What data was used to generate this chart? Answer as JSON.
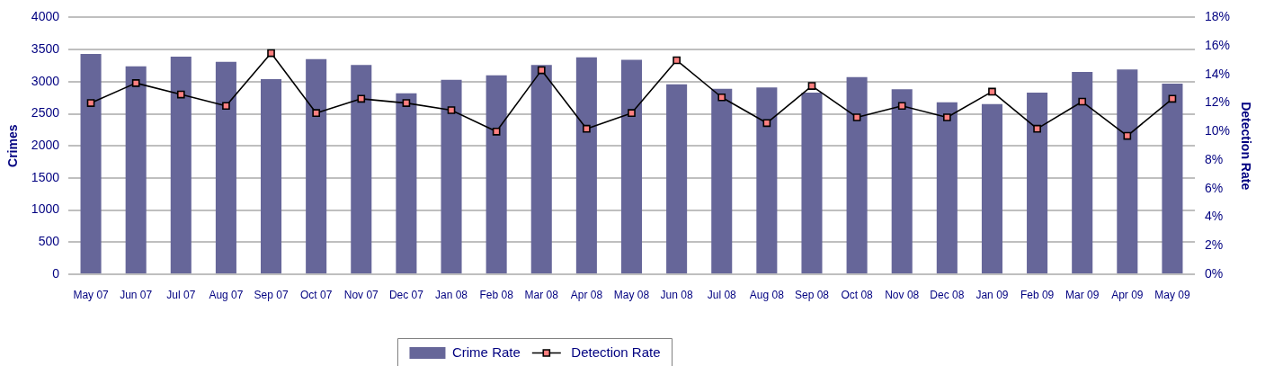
{
  "chart_data": {
    "type": "bar",
    "categories": [
      "May 07",
      "Jun 07",
      "Jul 07",
      "Aug 07",
      "Sep 07",
      "Oct 07",
      "Nov 07",
      "Dec 07",
      "Jan 08",
      "Feb 08",
      "Mar 08",
      "Apr 08",
      "May 08",
      "Jun 08",
      "Jul 08",
      "Aug 08",
      "Sep 08",
      "Oct 08",
      "Nov 08",
      "Dec 08",
      "Jan 09",
      "Feb 09",
      "Mar 09",
      "Apr 09",
      "May 09"
    ],
    "ylabel": "Crimes",
    "y2label": "Detection Rate",
    "ylim": [
      0,
      4000
    ],
    "yticks": [
      0,
      500,
      1000,
      1500,
      2000,
      2500,
      3000,
      3500,
      4000
    ],
    "y2lim": [
      0,
      18
    ],
    "y2ticks": [
      {
        "value": 0,
        "label": "0%"
      },
      {
        "value": 2,
        "label": "2%"
      },
      {
        "value": 4,
        "label": "4%"
      },
      {
        "value": 6,
        "label": "6%"
      },
      {
        "value": 8,
        "label": "8%"
      },
      {
        "value": 10,
        "label": "10%"
      },
      {
        "value": 12,
        "label": "12%"
      },
      {
        "value": 14,
        "label": "14%"
      },
      {
        "value": 16,
        "label": "16%"
      },
      {
        "value": 18,
        "label": "18%"
      }
    ],
    "grid": "y",
    "legend": "bottom",
    "marker": "square",
    "series": [
      {
        "name": "Crime Rate",
        "color": "#666699",
        "values": [
          3430,
          3240,
          3390,
          3310,
          3040,
          3350,
          3260,
          2820,
          3030,
          3100,
          3260,
          3380,
          3340,
          2960,
          2890,
          2910,
          2830,
          3070,
          2880,
          2680,
          2650,
          2830,
          3150,
          3190,
          2970
        ]
      },
      {
        "name": "Detection Rate",
        "type": "line",
        "axis": "y2",
        "color": "#000000",
        "values": [
          12.0,
          13.4,
          12.6,
          11.8,
          15.5,
          11.3,
          12.3,
          12.0,
          11.5,
          10.0,
          14.3,
          10.2,
          11.3,
          15.0,
          12.4,
          10.6,
          13.2,
          11.0,
          11.8,
          11.0,
          12.8,
          10.2,
          12.1,
          9.7,
          12.3
        ]
      }
    ]
  }
}
